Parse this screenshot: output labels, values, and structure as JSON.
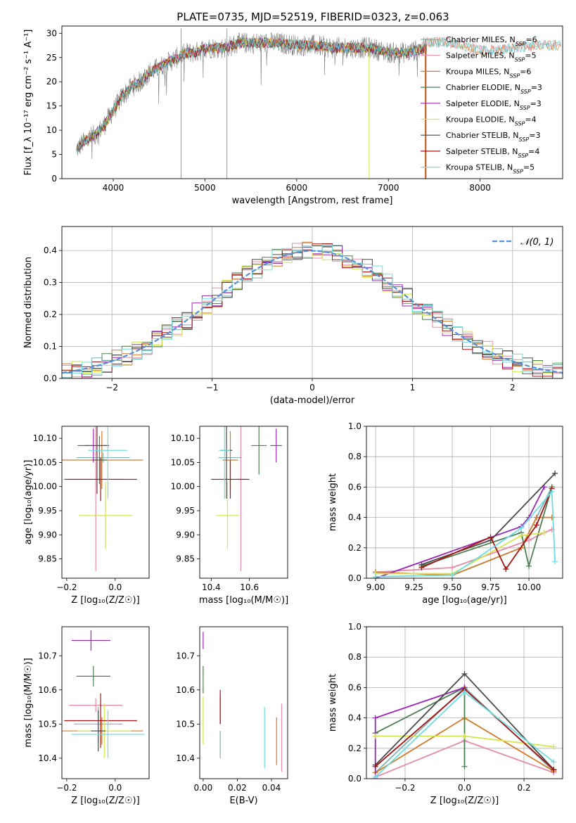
{
  "title": "PLATE=0735, MJD=52519, FIBERID=0323, z=0.063",
  "colors": {
    "Chabrier MILES": "#7fb2b2",
    "Salpeter MILES": "#e88aa7",
    "Kroupa MILES": "#d37a2b",
    "Chabrier ELODIE": "#4f7f53",
    "Salpeter ELODIE": "#9a27b5",
    "Kroupa ELODIE": "#d4e64a",
    "Chabrier STELIB": "#4a4a4a",
    "Salpeter STELIB": "#a51414",
    "Kroupa STELIB": "#6fdde0",
    "model_gray": "#808080",
    "gauss": "#5b8fd6"
  },
  "chart_data": [
    {
      "id": "spectrum",
      "type": "line",
      "title": "PLATE=0735, MJD=52519, FIBERID=0323, z=0.063",
      "xlabel": "wavelength [Angstrom, rest frame]",
      "ylabel": "Flux [f_λ 10⁻¹⁷ erg cm⁻² s⁻¹ A⁻¹]",
      "xlim": [
        3440,
        8900
      ],
      "ylim": [
        0,
        31.5
      ],
      "xticks": [
        "4000",
        "5000",
        "6000",
        "7000",
        "8000"
      ],
      "yticks": [
        "0",
        "5",
        "10",
        "15",
        "20",
        "25",
        "30"
      ],
      "legend": [
        {
          "label": "Chabrier MILES, N",
          "sub": "SSP",
          "eq": "=6"
        },
        {
          "label": "Salpeter MILES, N",
          "sub": "SSP",
          "eq": "=5"
        },
        {
          "label": "Kroupa MILES, N",
          "sub": "SSP",
          "eq": "=6"
        },
        {
          "label": "Chabrier ELODIE, N",
          "sub": "SSP",
          "eq": "=3"
        },
        {
          "label": "Salpeter ELODIE, N",
          "sub": "SSP",
          "eq": "=3"
        },
        {
          "label": "Kroupa ELODIE, N",
          "sub": "SSP",
          "eq": "=4"
        },
        {
          "label": "Chabrier STELIB, N",
          "sub": "SSP",
          "eq": "=3"
        },
        {
          "label": "Salpeter STELIB, N",
          "sub": "SSP",
          "eq": "=4"
        },
        {
          "label": "Kroupa STELIB, N",
          "sub": "SSP",
          "eq": "=5"
        }
      ],
      "legend_loc": "right",
      "continuum": {
        "x": [
          3600,
          3700,
          3800,
          3900,
          4000,
          4100,
          4200,
          4300,
          4400,
          4500,
          4600,
          4700,
          4800,
          4900,
          5000,
          5200,
          5400,
          5600,
          5800,
          6000,
          6200,
          6400,
          6600,
          6800,
          7000,
          7200,
          7400
        ],
        "y": [
          6,
          8,
          9,
          11,
          14,
          17,
          19,
          20,
          22,
          23,
          24,
          25,
          26,
          26,
          27,
          27,
          28,
          28,
          28,
          27.5,
          27.5,
          27,
          27,
          27,
          26,
          26,
          27
        ]
      },
      "model_extension": {
        "x": [
          7400,
          7600,
          7800,
          8000,
          8200,
          8400,
          8600,
          8800
        ],
        "y": [
          28,
          28.3,
          27.5,
          26.5,
          26.5,
          27,
          27.5,
          27.5
        ]
      }
    },
    {
      "id": "residuals",
      "type": "histogram",
      "xlabel": "(data-model)/error",
      "ylabel": "Normed distribution",
      "xlim": [
        -2.5,
        2.5
      ],
      "ylim": [
        0,
        0.475
      ],
      "xticks": [
        "−2",
        "−1",
        "0",
        "1",
        "2"
      ],
      "yticks": [
        "0.0",
        "0.1",
        "0.2",
        "0.3",
        "0.4"
      ],
      "grid": true,
      "legend": "𝒩(0, 1)",
      "bin_width": 0.1,
      "gaussian": {
        "mu": 0,
        "sigma": 1
      }
    },
    {
      "id": "age-vs-Z",
      "type": "errorbar",
      "xlabel": "Z [log₁₀(Z/Z☉)]",
      "ylabel": "age  [log₁₀(age/yr)]",
      "xlim": [
        -0.22,
        0.14
      ],
      "ylim": [
        9.81,
        10.125
      ],
      "xticks": [
        "−0.2",
        "0.0"
      ],
      "yticks": [
        "9.85",
        "9.90",
        "9.95",
        "10.00",
        "10.05",
        "10.10"
      ],
      "points": [
        {
          "model": "Chabrier MILES",
          "x": -0.05,
          "xerr": 0.11,
          "y": 10.06,
          "yerr": 0.01
        },
        {
          "model": "Salpeter MILES",
          "x": -0.08,
          "xerr": 0.11,
          "y": 10.015,
          "yerr": 0.19
        },
        {
          "model": "Kroupa MILES",
          "x": -0.055,
          "xerr": 0.17,
          "y": 10.055,
          "yerr": 0.06
        },
        {
          "model": "Chabrier ELODIE",
          "x": -0.065,
          "xerr": 0.03,
          "y": 10.055,
          "yerr": 0.05
        },
        {
          "model": "Salpeter ELODIE",
          "x": -0.09,
          "xerr": 0.065,
          "y": 10.085,
          "yerr": 0.035
        },
        {
          "model": "Kroupa ELODIE",
          "x": -0.04,
          "xerr": 0.11,
          "y": 9.94,
          "yerr": 0.07
        },
        {
          "model": "Chabrier STELIB",
          "x": -0.075,
          "xerr": 0.05,
          "y": 10.085,
          "yerr": 0.1
        },
        {
          "model": "Salpeter STELIB",
          "x": -0.06,
          "xerr": 0.15,
          "y": 10.015,
          "yerr": 0.045
        },
        {
          "model": "Kroupa STELIB",
          "x": -0.03,
          "xerr": 0.08,
          "y": 10.075,
          "yerr": 0.1
        }
      ]
    },
    {
      "id": "age-vs-mass",
      "type": "errorbar",
      "xlabel": "mass [log₁₀(M/M☉)]",
      "ylabel": "",
      "xlim": [
        10.34,
        10.8
      ],
      "ylim": [
        9.81,
        10.125
      ],
      "xticks": [
        "10.4",
        "10.6"
      ],
      "yticks": [
        "9.85",
        "9.90",
        "9.95",
        "10.00",
        "10.05",
        "10.10"
      ],
      "points": [
        {
          "model": "Chabrier MILES",
          "x": 10.5,
          "xerr": 0.06,
          "y": 10.06,
          "yerr": 0.01
        },
        {
          "model": "Salpeter MILES",
          "x": 10.555,
          "xerr": 0.02,
          "y": 10.015,
          "yerr": 0.19
        },
        {
          "model": "Kroupa MILES",
          "x": 10.5,
          "xerr": 0.04,
          "y": 10.055,
          "yerr": 0.06
        },
        {
          "model": "Chabrier ELODIE",
          "x": 10.65,
          "xerr": 0.04,
          "y": 10.085,
          "yerr": 0.06
        },
        {
          "model": "Salpeter ELODIE",
          "x": 10.74,
          "xerr": 0.03,
          "y": 10.085,
          "yerr": 0.035
        },
        {
          "model": "Kroupa ELODIE",
          "x": 10.485,
          "xerr": 0.06,
          "y": 9.94,
          "yerr": 0.07
        },
        {
          "model": "Chabrier STELIB",
          "x": 10.48,
          "xerr": 0.03,
          "y": 10.075,
          "yerr": 0.1
        },
        {
          "model": "Salpeter STELIB",
          "x": 10.5,
          "xerr": 0.1,
          "y": 10.015,
          "yerr": 0.04
        },
        {
          "model": "Kroupa STELIB",
          "x": 10.47,
          "xerr": 0.03,
          "y": 10.075,
          "yerr": 0.1
        }
      ]
    },
    {
      "id": "weight-vs-age",
      "type": "line",
      "xlabel": "age  [log₁₀(age/yr)]",
      "ylabel": "mass weight",
      "xlim": [
        8.94,
        10.22
      ],
      "ylim": [
        0,
        1
      ],
      "xticks": [
        "9.00",
        "9.25",
        "9.50",
        "9.75",
        "10.00"
      ],
      "yticks": [
        "0.0",
        "0.2",
        "0.4",
        "0.6",
        "0.8",
        "1.0"
      ],
      "grid": true,
      "series": [
        {
          "model": "Chabrier MILES",
          "x": [
            9.0,
            9.5,
            9.95,
            10.05,
            10.15
          ],
          "y": [
            0.04,
            0.02,
            0.2,
            0.4,
            0.6
          ]
        },
        {
          "model": "Salpeter MILES",
          "x": [
            9.0,
            9.5,
            10.0,
            10.1,
            10.15
          ],
          "y": [
            0.04,
            0.07,
            0.25,
            0.3,
            0.32
          ]
        },
        {
          "model": "Kroupa MILES",
          "x": [
            9.0,
            9.5,
            9.95,
            10.05,
            10.15
          ],
          "y": [
            0.04,
            0.02,
            0.2,
            0.4,
            0.4
          ]
        },
        {
          "model": "Chabrier ELODIE",
          "x": [
            9.3,
            9.95,
            10.0,
            10.15
          ],
          "y": [
            0.08,
            0.3,
            0.08,
            0.6
          ]
        },
        {
          "model": "Salpeter ELODIE",
          "x": [
            9.0,
            9.95,
            10.0,
            10.1
          ],
          "y": [
            0.0,
            0.34,
            0.4,
            0.6
          ]
        },
        {
          "model": "Kroupa ELODIE",
          "x": [
            9.0,
            9.5,
            9.95,
            10.1
          ],
          "y": [
            0.03,
            0.03,
            0.28,
            0.3
          ]
        },
        {
          "model": "Chabrier STELIB",
          "x": [
            9.3,
            9.75,
            10.17
          ],
          "y": [
            0.09,
            0.25,
            0.69
          ]
        },
        {
          "model": "Salpeter STELIB",
          "x": [
            9.3,
            9.75,
            9.85,
            10.05,
            10.15
          ],
          "y": [
            0.07,
            0.27,
            0.06,
            0.35,
            0.59
          ]
        },
        {
          "model": "Kroupa STELIB",
          "x": [
            9.0,
            9.5,
            9.95,
            10.15,
            10.17
          ],
          "y": [
            0.01,
            0.02,
            0.33,
            0.57,
            0.11
          ]
        }
      ]
    },
    {
      "id": "mass-vs-Z",
      "type": "errorbar",
      "xlabel": "Z [log₁₀(Z/Z☉)]",
      "ylabel": "mass [log₁₀(M/M☉)]",
      "xlim": [
        -0.22,
        0.14
      ],
      "ylim": [
        10.34,
        10.785
      ],
      "xticks": [
        "−0.2",
        "0.0"
      ],
      "yticks": [
        "10.4",
        "10.5",
        "10.6",
        "10.7"
      ],
      "points": [
        {
          "model": "Chabrier MILES",
          "x": -0.07,
          "xerr": 0.1,
          "y": 10.5,
          "yerr": 0.05
        },
        {
          "model": "Salpeter MILES",
          "x": -0.08,
          "xerr": 0.11,
          "y": 10.555,
          "yerr": 0.02
        },
        {
          "model": "Kroupa MILES",
          "x": -0.055,
          "xerr": 0.17,
          "y": 10.48,
          "yerr": 0.04
        },
        {
          "model": "Chabrier ELODIE",
          "x": -0.09,
          "xerr": 0.07,
          "y": 10.64,
          "yerr": 0.03
        },
        {
          "model": "Salpeter ELODIE",
          "x": -0.1,
          "xerr": 0.08,
          "y": 10.745,
          "yerr": 0.03
        },
        {
          "model": "Kroupa ELODIE",
          "x": -0.045,
          "xerr": 0.11,
          "y": 10.48,
          "yerr": 0.08
        },
        {
          "model": "Chabrier STELIB",
          "x": -0.07,
          "xerr": 0.03,
          "y": 10.48,
          "yerr": 0.06
        },
        {
          "model": "Salpeter STELIB",
          "x": -0.06,
          "xerr": 0.15,
          "y": 10.51,
          "yerr": 0.08
        },
        {
          "model": "Kroupa STELIB",
          "x": -0.03,
          "xerr": 0.15,
          "y": 10.47,
          "yerr": 0.07
        }
      ]
    },
    {
      "id": "mass-vs-EBV",
      "type": "errorbar",
      "xlabel": "E(B-V)",
      "ylabel": "",
      "xlim": [
        -0.002,
        0.0495
      ],
      "ylim": [
        10.34,
        10.785
      ],
      "xticks": [
        "0.00",
        "0.02",
        "0.04"
      ],
      "yticks": [
        "10.4",
        "10.5",
        "10.6",
        "10.7"
      ],
      "points": [
        {
          "model": "Chabrier MILES",
          "x": 0.01,
          "xerr": 0,
          "y": 10.44,
          "yerr": 0.04
        },
        {
          "model": "Salpeter MILES",
          "x": 0.046,
          "xerr": 0,
          "y": 10.46,
          "yerr": 0.1
        },
        {
          "model": "Kroupa MILES",
          "x": 0.043,
          "xerr": 0,
          "y": 10.45,
          "yerr": 0.07
        },
        {
          "model": "Chabrier ELODIE",
          "x": 0.0,
          "xerr": 0,
          "y": 10.63,
          "yerr": 0.04
        },
        {
          "model": "Salpeter ELODIE",
          "x": 0.0,
          "xerr": 0,
          "y": 10.745,
          "yerr": 0.025
        },
        {
          "model": "Kroupa ELODIE",
          "x": 0.0,
          "xerr": 0,
          "y": 10.51,
          "yerr": 0.07
        },
        {
          "model": "Chabrier STELIB",
          "x": 0.01,
          "xerr": 0,
          "y": 10.54,
          "yerr": 0.04
        },
        {
          "model": "Salpeter STELIB",
          "x": 0.01,
          "xerr": 0,
          "y": 10.55,
          "yerr": 0.05
        },
        {
          "model": "Kroupa STELIB",
          "x": 0.036,
          "xerr": 0,
          "y": 10.46,
          "yerr": 0.09
        }
      ]
    },
    {
      "id": "weight-vs-Z",
      "type": "line",
      "xlabel": "Z [log₁₀(Z/Z☉)]",
      "ylabel": "mass weight",
      "xlim": [
        -0.33,
        0.33
      ],
      "ylim": [
        0,
        1
      ],
      "xticks": [
        "−0.2",
        "0.0",
        "0.2"
      ],
      "yticks": [
        "0.0",
        "0.2",
        "0.4",
        "0.6",
        "0.8",
        "1.0"
      ],
      "grid": true,
      "series": [
        {
          "model": "Chabrier MILES",
          "x": [
            -0.3,
            0.0,
            0.3
          ],
          "y": [
            0.04,
            0.6,
            0.05
          ]
        },
        {
          "model": "Salpeter MILES",
          "x": [
            -0.3,
            0.0,
            0.3
          ],
          "y": [
            0.01,
            0.25,
            0.04
          ]
        },
        {
          "model": "Kroupa MILES",
          "x": [
            -0.3,
            0.0,
            0.3
          ],
          "y": [
            0.04,
            0.4,
            0.05
          ]
        },
        {
          "model": "Chabrier ELODIE",
          "x": [
            -0.3,
            0.0,
            0.0
          ],
          "y": [
            0.3,
            0.6,
            0.08
          ]
        },
        {
          "model": "Salpeter ELODIE",
          "x": [
            -0.3,
            -0.3,
            0.0
          ],
          "y": [
            0.0,
            0.4,
            0.6
          ]
        },
        {
          "model": "Kroupa ELODIE",
          "x": [
            -0.3,
            0.0,
            0.3
          ],
          "y": [
            0.28,
            0.28,
            0.21
          ]
        },
        {
          "model": "Chabrier STELIB",
          "x": [
            -0.3,
            0.0,
            0.3
          ],
          "y": [
            0.09,
            0.69,
            0.06
          ]
        },
        {
          "model": "Salpeter STELIB",
          "x": [
            -0.3,
            0.0,
            0.3
          ],
          "y": [
            0.08,
            0.59,
            0.06
          ]
        },
        {
          "model": "Kroupa STELIB",
          "x": [
            -0.3,
            0.0,
            0.3
          ],
          "y": [
            0.01,
            0.57,
            0.11
          ]
        }
      ]
    }
  ]
}
